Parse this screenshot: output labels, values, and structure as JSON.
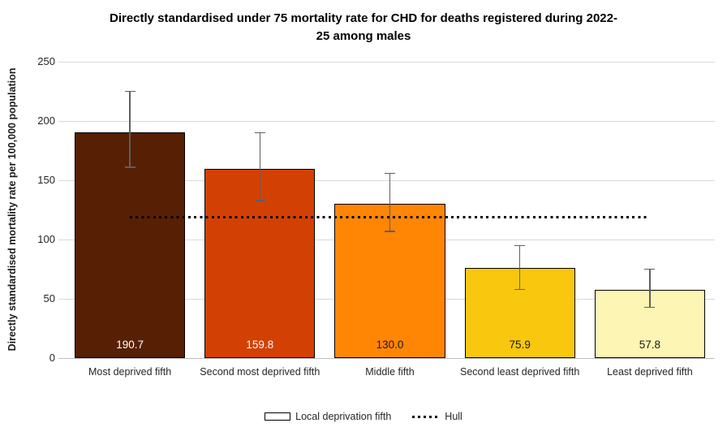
{
  "chart_data": {
    "type": "bar",
    "title": "Directly standardised under 75 mortality rate for CHD for deaths registered during 2022-25 among males",
    "title_lines": [
      "Directly standardised under 75 mortality rate for CHD for deaths registered during 2022-",
      "25 among males"
    ],
    "ylabel": "Directly standardised mortality rate per 100,000 population",
    "xlabel": "",
    "ylim": [
      0,
      250
    ],
    "y_ticks": [
      0,
      50,
      100,
      150,
      200,
      250
    ],
    "grid": "horizontal-gridlines-on",
    "legend_position": "bottom",
    "categories": [
      "Most deprived fifth",
      "Second most deprived fifth",
      "Middle fifth",
      "Second least deprived fifth",
      "Least deprived fifth"
    ],
    "bars": [
      {
        "category": "Most deprived fifth",
        "value": 190.7,
        "value_label": "190.7",
        "color": "#571F04",
        "label_color": "#ffffff",
        "ci_low": 161,
        "ci_high": 225
      },
      {
        "category": "Second most deprived fifth",
        "value": 159.8,
        "value_label": "159.8",
        "color": "#D34003",
        "label_color": "#ffffff",
        "ci_low": 133,
        "ci_high": 190
      },
      {
        "category": "Middle fifth",
        "value": 130.0,
        "value_label": "130.0",
        "color": "#FF8605",
        "label_color": "#1a1a1a",
        "ci_low": 107,
        "ci_high": 156
      },
      {
        "category": "Second least deprived fifth",
        "value": 75.9,
        "value_label": "75.9",
        "color": "#F8C70E",
        "label_color": "#1a1a1a",
        "ci_low": 58,
        "ci_high": 95
      },
      {
        "category": "Least deprived fifth",
        "value": 57.8,
        "value_label": "57.8",
        "color": "#FCF5B3",
        "label_color": "#1a1a1a",
        "ci_low": 43,
        "ci_high": 75
      }
    ],
    "reference_line": {
      "name": "Hull",
      "value": 119,
      "style": "dotted",
      "color": "#000000"
    },
    "error_bar_color": "#5f5f5f",
    "gridline_color": "#d9d9d9",
    "axis_line_color": "#bfbfbf",
    "legend": [
      {
        "label": "Local deprivation fifth",
        "swatch": "outlined-rect"
      },
      {
        "label": "Hull",
        "swatch": "dotted-line"
      }
    ]
  }
}
